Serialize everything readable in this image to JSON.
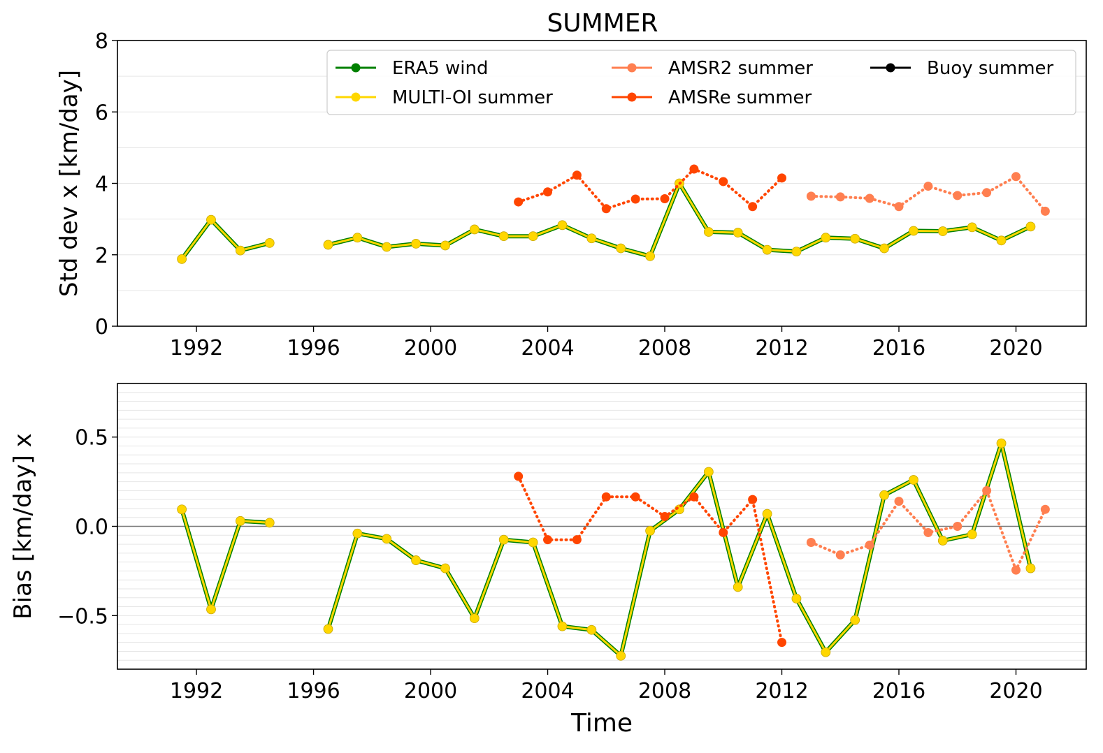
{
  "title": "SUMMER",
  "chart_data": [
    {
      "type": "line",
      "ylabel": "Std dev x [km/day]",
      "xlabel": "",
      "xlim": [
        1989.3,
        2022.4
      ],
      "ylim": [
        0,
        8
      ],
      "xticks": [
        1992,
        1996,
        2000,
        2004,
        2008,
        2012,
        2016,
        2020
      ],
      "yticks": [
        0,
        2,
        4,
        6,
        8
      ],
      "ytick_labels": [
        "0",
        "2",
        "4",
        "6",
        "8"
      ],
      "grid": "horizontal",
      "legend": {
        "placement": "top-right",
        "entries": [
          {
            "name": "ERA5 wind",
            "color": "#008000"
          },
          {
            "name": "MULTI-OI summer",
            "color": "#FFD700"
          },
          {
            "name": "AMSR2 summer",
            "color": "#FF7F50"
          },
          {
            "name": "AMSRe summer",
            "color": "#FF4500"
          },
          {
            "name": "Buoy summer",
            "color": "#000000"
          }
        ]
      },
      "series": [
        {
          "name": "ERA5 wind",
          "color": "#008000",
          "style": "solid",
          "x": [
            1991.5,
            1992.5,
            1993.5,
            1994.5,
            null,
            1996.5,
            1997.5,
            1998.5,
            1999.5,
            2000.5,
            2001.5,
            2002.5,
            2003.5,
            2004.5,
            2005.5,
            2006.5,
            2007.5,
            2008.5,
            2009.5,
            2010.5,
            2011.5,
            2012.5,
            2013.5,
            2014.5,
            2015.5,
            2016.5,
            2017.5,
            2018.5,
            2019.5,
            2020.5
          ],
          "y": [
            1.88,
            2.98,
            2.12,
            2.33,
            null,
            2.28,
            2.48,
            2.22,
            2.31,
            2.26,
            2.71,
            2.52,
            2.52,
            2.83,
            2.46,
            2.18,
            1.96,
            4.0,
            2.64,
            2.62,
            2.14,
            2.09,
            2.48,
            2.45,
            2.18,
            2.67,
            2.66,
            2.77,
            2.4,
            2.79
          ]
        },
        {
          "name": "MULTI-OI summer",
          "color": "#FFD700",
          "style": "solid",
          "x": [
            1991.5,
            1992.5,
            1993.5,
            1994.5,
            null,
            1996.5,
            1997.5,
            1998.5,
            1999.5,
            2000.5,
            2001.5,
            2002.5,
            2003.5,
            2004.5,
            2005.5,
            2006.5,
            2007.5,
            2008.5,
            2009.5,
            2010.5,
            2011.5,
            2012.5,
            2013.5,
            2014.5,
            2015.5,
            2016.5,
            2017.5,
            2018.5,
            2019.5,
            2020.5
          ],
          "y": [
            1.88,
            2.98,
            2.12,
            2.33,
            null,
            2.28,
            2.48,
            2.22,
            2.31,
            2.26,
            2.71,
            2.52,
            2.52,
            2.83,
            2.46,
            2.18,
            1.96,
            4.0,
            2.64,
            2.62,
            2.14,
            2.09,
            2.48,
            2.45,
            2.18,
            2.67,
            2.66,
            2.77,
            2.4,
            2.79
          ]
        },
        {
          "name": "AMSRe summer",
          "color": "#FF4500",
          "style": "dotted",
          "x": [
            2003.0,
            2004.0,
            2005.0,
            2006.0,
            2007.0,
            2008.0,
            2009.0,
            2010.0,
            2011.0,
            2012.0
          ],
          "y": [
            3.48,
            3.76,
            4.23,
            3.29,
            3.56,
            3.57,
            4.4,
            4.05,
            3.35,
            4.15
          ]
        },
        {
          "name": "AMSR2 summer",
          "color": "#FF7F50",
          "style": "dotted",
          "x": [
            2013.0,
            2014.0,
            2015.0,
            2016.0,
            2017.0,
            2018.0,
            2019.0,
            2020.0,
            2021.0
          ],
          "y": [
            3.64,
            3.62,
            3.58,
            3.35,
            3.92,
            3.66,
            3.74,
            4.19,
            3.22
          ]
        }
      ]
    },
    {
      "type": "line",
      "ylabel": "Bias [km/day] x",
      "xlabel": "Time",
      "xlim": [
        1989.3,
        2022.4
      ],
      "ylim": [
        -0.8,
        0.8
      ],
      "xticks": [
        1992,
        1996,
        2000,
        2004,
        2008,
        2012,
        2016,
        2020
      ],
      "yticks": [
        -0.5,
        0.0,
        0.5
      ],
      "ytick_labels": [
        "−0.5",
        "0.0",
        "0.5"
      ],
      "grid": "horizontal",
      "zero_line": true,
      "series": [
        {
          "name": "ERA5 wind",
          "color": "#008000",
          "style": "solid",
          "x": [
            1991.5,
            1992.5,
            1993.5,
            1994.5,
            null,
            1996.5,
            1997.5,
            1998.5,
            1999.5,
            2000.5,
            2001.5,
            2002.5,
            2003.5,
            2004.5,
            2005.5,
            2006.5,
            2007.5,
            2008.5,
            2009.5,
            2010.5,
            2011.5,
            2012.5,
            2013.5,
            2014.5,
            2015.5,
            2016.5,
            2017.5,
            2018.5,
            2019.5,
            2020.5
          ],
          "y": [
            0.095,
            -0.465,
            0.03,
            0.02,
            null,
            -0.575,
            -0.04,
            -0.07,
            -0.19,
            -0.235,
            -0.515,
            -0.075,
            -0.09,
            -0.56,
            -0.58,
            -0.725,
            -0.025,
            0.095,
            0.305,
            -0.34,
            0.07,
            -0.405,
            -0.705,
            -0.525,
            0.175,
            0.26,
            -0.08,
            -0.045,
            0.465,
            -0.235
          ]
        },
        {
          "name": "MULTI-OI summer",
          "color": "#FFD700",
          "style": "solid",
          "x": [
            1991.5,
            1992.5,
            1993.5,
            1994.5,
            null,
            1996.5,
            1997.5,
            1998.5,
            1999.5,
            2000.5,
            2001.5,
            2002.5,
            2003.5,
            2004.5,
            2005.5,
            2006.5,
            2007.5,
            2008.5,
            2009.5,
            2010.5,
            2011.5,
            2012.5,
            2013.5,
            2014.5,
            2015.5,
            2016.5,
            2017.5,
            2018.5,
            2019.5,
            2020.5
          ],
          "y": [
            0.095,
            -0.465,
            0.03,
            0.02,
            null,
            -0.575,
            -0.04,
            -0.07,
            -0.19,
            -0.235,
            -0.515,
            -0.075,
            -0.09,
            -0.56,
            -0.58,
            -0.725,
            -0.025,
            0.095,
            0.305,
            -0.34,
            0.07,
            -0.405,
            -0.705,
            -0.525,
            0.175,
            0.26,
            -0.08,
            -0.045,
            0.465,
            -0.235
          ]
        },
        {
          "name": "AMSRe summer",
          "color": "#FF4500",
          "style": "dotted",
          "x": [
            2003.0,
            2004.0,
            2005.0,
            2006.0,
            2007.0,
            2008.0,
            2009.0,
            2010.0,
            2011.0,
            2012.0
          ],
          "y": [
            0.28,
            -0.075,
            -0.075,
            0.165,
            0.165,
            0.055,
            0.165,
            -0.035,
            0.15,
            -0.65
          ]
        },
        {
          "name": "AMSR2 summer",
          "color": "#FF7F50",
          "style": "dotted",
          "x": [
            2013.0,
            2014.0,
            2015.0,
            2016.0,
            2017.0,
            2018.0,
            2019.0,
            2020.0,
            2021.0
          ],
          "y": [
            -0.09,
            -0.16,
            -0.105,
            0.14,
            -0.035,
            0.0,
            0.2,
            -0.245,
            0.095
          ]
        }
      ]
    }
  ]
}
